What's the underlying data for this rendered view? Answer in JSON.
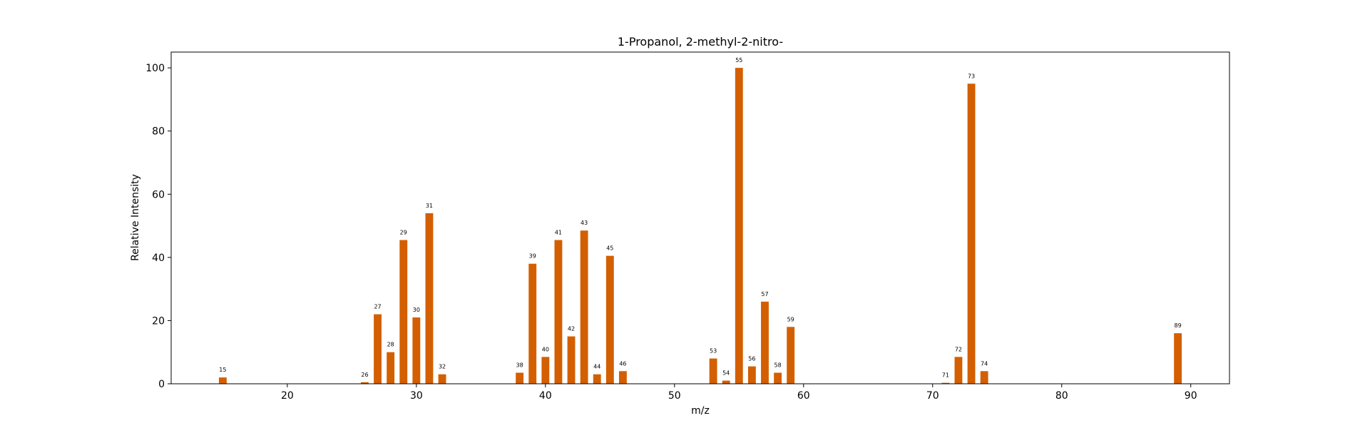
{
  "chart_data": {
    "type": "bar",
    "title": "1-Propanol, 2-methyl-2-nitro-",
    "xlabel": "m/z",
    "ylabel": "Relative Intensity",
    "xlim": [
      11,
      93
    ],
    "ylim": [
      0,
      105
    ],
    "xticks": [
      20,
      30,
      40,
      50,
      60,
      70,
      80,
      90
    ],
    "yticks": [
      0,
      20,
      40,
      60,
      80,
      100
    ],
    "grid": false,
    "bar_color": "#d35f00",
    "bars": [
      {
        "x": 15,
        "y": 2,
        "label": "15"
      },
      {
        "x": 26,
        "y": 0.5,
        "label": "26"
      },
      {
        "x": 27,
        "y": 22,
        "label": "27"
      },
      {
        "x": 28,
        "y": 10,
        "label": "28"
      },
      {
        "x": 29,
        "y": 45.5,
        "label": "29"
      },
      {
        "x": 30,
        "y": 21,
        "label": "30"
      },
      {
        "x": 31,
        "y": 54,
        "label": "31"
      },
      {
        "x": 32,
        "y": 3,
        "label": "32"
      },
      {
        "x": 38,
        "y": 3.5,
        "label": "38"
      },
      {
        "x": 39,
        "y": 38,
        "label": "39"
      },
      {
        "x": 40,
        "y": 8.5,
        "label": "40"
      },
      {
        "x": 41,
        "y": 45.5,
        "label": "41"
      },
      {
        "x": 42,
        "y": 15,
        "label": "42"
      },
      {
        "x": 43,
        "y": 48.5,
        "label": "43"
      },
      {
        "x": 44,
        "y": 3,
        "label": "44"
      },
      {
        "x": 45,
        "y": 40.5,
        "label": "45"
      },
      {
        "x": 46,
        "y": 4,
        "label": "46"
      },
      {
        "x": 53,
        "y": 8,
        "label": "53"
      },
      {
        "x": 54,
        "y": 1,
        "label": "54"
      },
      {
        "x": 55,
        "y": 100,
        "label": "55"
      },
      {
        "x": 56,
        "y": 5.5,
        "label": "56"
      },
      {
        "x": 57,
        "y": 26,
        "label": "57"
      },
      {
        "x": 58,
        "y": 3.5,
        "label": "58"
      },
      {
        "x": 59,
        "y": 18,
        "label": "59"
      },
      {
        "x": 71,
        "y": 0.3,
        "label": "71"
      },
      {
        "x": 72,
        "y": 8.5,
        "label": "72"
      },
      {
        "x": 73,
        "y": 95,
        "label": "73"
      },
      {
        "x": 74,
        "y": 4,
        "label": "74"
      },
      {
        "x": 89,
        "y": 16,
        "label": "89"
      }
    ]
  }
}
